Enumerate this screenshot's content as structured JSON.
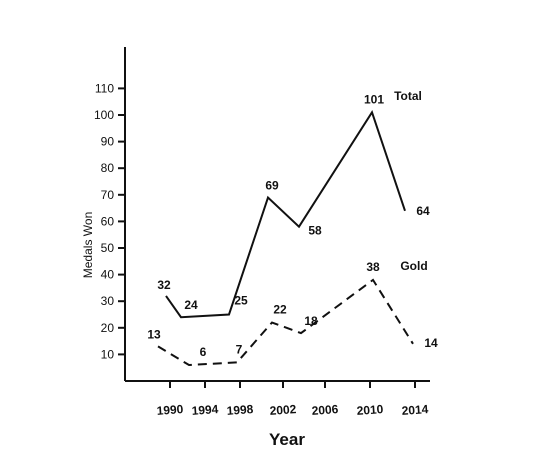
{
  "chart_data": {
    "type": "line",
    "title": "",
    "xlabel": "Year",
    "ylabel": "Medals Won",
    "ylim": [
      0,
      110
    ],
    "yticks": [
      10,
      20,
      30,
      40,
      50,
      60,
      70,
      80,
      90,
      100,
      110
    ],
    "categories": [
      "1990",
      "1994",
      "1998",
      "2002",
      "2006",
      "2010",
      "2014"
    ],
    "series": [
      {
        "name": "Total",
        "style": "solid",
        "color": "#111111",
        "x": [
          1988,
          1992,
          1996,
          2000,
          2004,
          2008,
          2012
        ],
        "values": [
          32,
          24,
          25,
          69,
          58,
          101,
          64
        ]
      },
      {
        "name": "Gold",
        "style": "dashed",
        "color": "#111111",
        "x": [
          1988,
          1992,
          1996,
          2000,
          2004,
          2008,
          2012
        ],
        "values": [
          13,
          6,
          7,
          22,
          18,
          38,
          14
        ]
      }
    ],
    "grid": false,
    "legend": "inline labels beside each line"
  }
}
